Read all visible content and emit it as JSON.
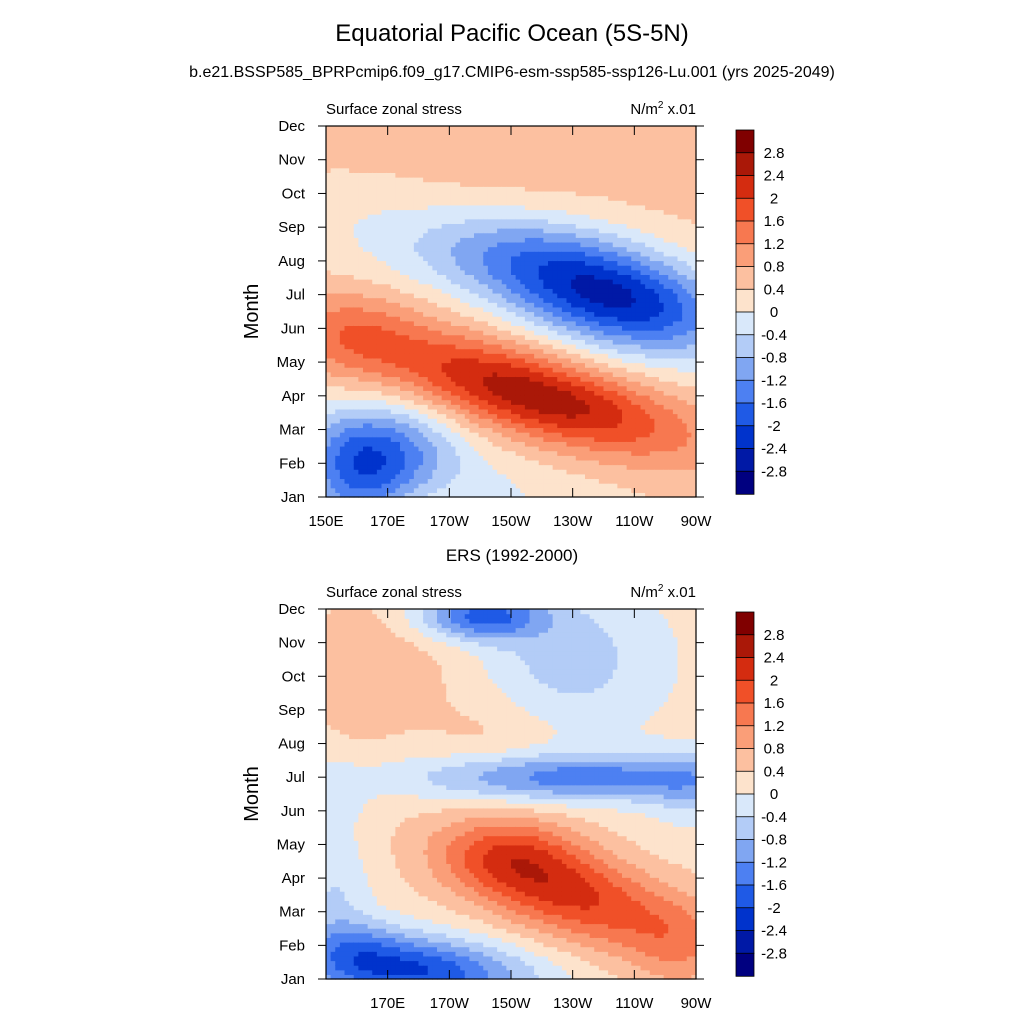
{
  "title": "Equatorial Pacific Ocean (5S-5N)",
  "subtitle": "b.e21.BSSP585_BPRPcmip6.f09_g17.CMIP6-esm-ssp585-ssp126-Lu.001 (yrs 2025-2049)",
  "colors": {
    "levels": [
      "#000080",
      "#0019a6",
      "#0033cc",
      "#1f5ae6",
      "#4d80f2",
      "#80a6f2",
      "#b3ccf7",
      "#d9e8fa",
      "#fde3cc",
      "#fcc0a0",
      "#fa9e78",
      "#f77850",
      "#f05028",
      "#d42c10",
      "#aa1808",
      "#800000"
    ]
  },
  "colorbar_labels": [
    "2.8",
    "2.4",
    "2",
    "1.6",
    "1.2",
    "0.8",
    "0.4",
    "0",
    "-0.4",
    "-0.8",
    "-1.2",
    "-1.6",
    "-2",
    "-2.4",
    "-2.8"
  ],
  "chart_data": [
    {
      "type": "heatmap",
      "panel": "top",
      "left_label": "Surface zonal stress",
      "right_label_base": "N/m",
      "right_label_sup": "2",
      "right_label_tail": " x.01",
      "xlabel": "",
      "ylabel": "Month",
      "x_ticks": [
        "150E",
        "170E",
        "170W",
        "150W",
        "130W",
        "110W",
        "90W"
      ],
      "y_ticks": [
        "Jan",
        "Feb",
        "Mar",
        "Apr",
        "May",
        "Jun",
        "Jul",
        "Aug",
        "Sep",
        "Oct",
        "Nov",
        "Dec"
      ],
      "x_range": [
        150,
        270
      ],
      "levels": [
        -2.8,
        -2.4,
        -2.0,
        -1.6,
        -1.2,
        -0.8,
        -0.4,
        0,
        0.4,
        0.8,
        1.2,
        1.6,
        2.0,
        2.4,
        2.8
      ],
      "features": [
        {
          "type": "base",
          "value": 0.5
        },
        {
          "lon": 160,
          "month": 1.8,
          "sx": 13,
          "sy": 1.2,
          "amp": -2.0
        },
        {
          "lon": 178,
          "month": 2.5,
          "sx": 14,
          "sy": 1.0,
          "amp": -0.8
        },
        {
          "lon": 205,
          "month": 1.3,
          "sx": 55,
          "sy": 1.0,
          "amp": -0.5,
          "tilt": -0.03
        },
        {
          "lon": 158,
          "month": 5.8,
          "sx": 14,
          "sy": 0.9,
          "amp": 0.7
        },
        {
          "lon": 210,
          "month": 4.3,
          "sx": 35,
          "sy": 0.9,
          "amp": 1.5,
          "tilt": -0.025
        },
        {
          "lon": 228,
          "month": 3.7,
          "sx": 30,
          "sy": 0.8,
          "amp": 0.8,
          "tilt": -0.02
        },
        {
          "lon": 242,
          "month": 7.0,
          "sx": 28,
          "sy": 1.1,
          "amp": -3.0,
          "tilt": -0.02
        },
        {
          "lon": 200,
          "month": 8.3,
          "sx": 25,
          "sy": 0.9,
          "amp": -0.7
        },
        {
          "lon": 160,
          "month": 9.5,
          "sx": 25,
          "sy": 1.2,
          "amp": -0.4
        },
        {
          "lon": 185,
          "month": 11.0,
          "sx": 40,
          "sy": 1.2,
          "amp": 0.2
        }
      ]
    },
    {
      "type": "heatmap",
      "panel": "bottom",
      "title": "ERS (1992-2000)",
      "left_label": "Surface zonal stress",
      "right_label_base": "N/m",
      "right_label_sup": "2",
      "right_label_tail": " x.01",
      "xlabel": "",
      "ylabel": "Month",
      "x_ticks": [
        "",
        "170E",
        "170W",
        "150W",
        "130W",
        "110W",
        "90W"
      ],
      "y_ticks": [
        "Jan",
        "Feb",
        "Mar",
        "Apr",
        "May",
        "Jun",
        "Jul",
        "Aug",
        "Sep",
        "Oct",
        "Nov",
        "Dec"
      ],
      "x_range": [
        150,
        270
      ],
      "levels": [
        -2.8,
        -2.4,
        -2.0,
        -1.6,
        -1.2,
        -0.8,
        -0.4,
        0,
        0.4,
        0.8,
        1.2,
        1.6,
        2.0,
        2.4,
        2.8
      ],
      "features": [
        {
          "type": "base",
          "value": 0.2
        },
        {
          "lon": 175,
          "month": 1.3,
          "sx": 22,
          "sy": 0.7,
          "amp": -1.9
        },
        {
          "lon": 160,
          "month": 2.0,
          "sx": 12,
          "sy": 0.6,
          "amp": -0.8
        },
        {
          "lon": 200,
          "month": 1.0,
          "sx": 20,
          "sy": 0.6,
          "amp": -0.6
        },
        {
          "lon": 153,
          "month": 3.5,
          "sx": 8,
          "sy": 1.5,
          "amp": -0.6
        },
        {
          "lon": 228,
          "month": 3.6,
          "sx": 26,
          "sy": 1.0,
          "amp": 1.9,
          "tilt": -0.025
        },
        {
          "lon": 210,
          "month": 4.8,
          "sx": 16,
          "sy": 0.8,
          "amp": 0.9
        },
        {
          "lon": 265,
          "month": 2.0,
          "sx": 12,
          "sy": 1.0,
          "amp": 0.7
        },
        {
          "lon": 232,
          "month": 7.0,
          "sx": 38,
          "sy": 0.5,
          "amp": -1.6
        },
        {
          "lon": 268,
          "month": 6.6,
          "sx": 10,
          "sy": 0.8,
          "amp": -0.5
        },
        {
          "lon": 152,
          "month": 6.5,
          "sx": 8,
          "sy": 0.7,
          "amp": -0.4
        },
        {
          "lon": 200,
          "month": 11.8,
          "sx": 14,
          "sy": 0.5,
          "amp": -1.9
        },
        {
          "lon": 228,
          "month": 10.5,
          "sx": 22,
          "sy": 1.5,
          "amp": -0.8
        },
        {
          "lon": 175,
          "month": 10.3,
          "sx": 22,
          "sy": 1.4,
          "amp": 0.4
        },
        {
          "lon": 205,
          "month": 8.3,
          "sx": 14,
          "sy": 0.8,
          "amp": 0.3
        },
        {
          "lon": 160,
          "month": 10.0,
          "sx": 10,
          "sy": 2.0,
          "amp": 0.2
        }
      ]
    }
  ]
}
